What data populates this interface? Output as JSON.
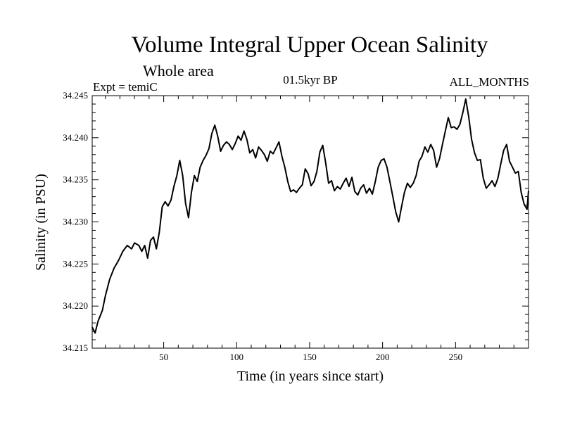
{
  "header": {
    "title": "Volume Integral Upper Ocean Salinity",
    "subtitle": "Whole area",
    "experiment": "Expt = temiC",
    "period": "01.5kyr BP",
    "months": "ALL_MONTHS"
  },
  "chart_data": {
    "type": "line",
    "title": "Volume Integral Upper Ocean Salinity",
    "xlabel": "Time (in years since start)",
    "ylabel": "Salinity (in PSU)",
    "xlim": [
      1,
      300
    ],
    "ylim": [
      34.215,
      34.245
    ],
    "x_ticks": [
      50,
      100,
      150,
      200,
      250
    ],
    "x_tick_labels": [
      "50",
      "100",
      "150",
      "200",
      "250"
    ],
    "y_ticks": [
      34.215,
      34.22,
      34.225,
      34.23,
      34.235,
      34.24,
      34.245
    ],
    "y_tick_labels": [
      "34.215",
      "34.220",
      "34.225",
      "34.230",
      "34.235",
      "34.240",
      "34.245"
    ],
    "grid": false,
    "series": [
      {
        "name": "Salinity",
        "points": [
          [
            1,
            34.2175
          ],
          [
            3,
            34.2168
          ],
          [
            5,
            34.2182
          ],
          [
            8,
            34.2195
          ],
          [
            10,
            34.2212
          ],
          [
            13,
            34.2232
          ],
          [
            16,
            34.2245
          ],
          [
            19,
            34.2254
          ],
          [
            22,
            34.2265
          ],
          [
            25,
            34.2272
          ],
          [
            28,
            34.2268
          ],
          [
            30,
            34.2275
          ],
          [
            33,
            34.2272
          ],
          [
            35,
            34.2265
          ],
          [
            37,
            34.2272
          ],
          [
            39,
            34.2257
          ],
          [
            41,
            34.2278
          ],
          [
            43,
            34.2282
          ],
          [
            45,
            34.2268
          ],
          [
            47,
            34.2288
          ],
          [
            49,
            34.2318
          ],
          [
            51,
            34.2324
          ],
          [
            53,
            34.2319
          ],
          [
            55,
            34.2326
          ],
          [
            57,
            34.2342
          ],
          [
            59,
            34.2355
          ],
          [
            61,
            34.2373
          ],
          [
            63,
            34.2355
          ],
          [
            65,
            34.2322
          ],
          [
            67,
            34.2305
          ],
          [
            69,
            34.2335
          ],
          [
            71,
            34.2355
          ],
          [
            73,
            34.2348
          ],
          [
            75,
            34.2365
          ],
          [
            77,
            34.2373
          ],
          [
            79,
            34.2379
          ],
          [
            81,
            34.2387
          ],
          [
            83,
            34.2405
          ],
          [
            85,
            34.2415
          ],
          [
            87,
            34.2402
          ],
          [
            89,
            34.2384
          ],
          [
            91,
            34.2391
          ],
          [
            93,
            34.2395
          ],
          [
            95,
            34.2392
          ],
          [
            97,
            34.2386
          ],
          [
            99,
            34.2393
          ],
          [
            101,
            34.2402
          ],
          [
            103,
            34.2397
          ],
          [
            105,
            34.2408
          ],
          [
            107,
            34.2398
          ],
          [
            109,
            34.2382
          ],
          [
            111,
            34.2386
          ],
          [
            113,
            34.2376
          ],
          [
            115,
            34.2389
          ],
          [
            117,
            34.2385
          ],
          [
            119,
            34.238
          ],
          [
            121,
            34.2372
          ],
          [
            123,
            34.2384
          ],
          [
            125,
            34.2381
          ],
          [
            127,
            34.2388
          ],
          [
            129,
            34.2395
          ],
          [
            131,
            34.2378
          ],
          [
            133,
            34.2365
          ],
          [
            135,
            34.2348
          ],
          [
            137,
            34.2336
          ],
          [
            139,
            34.2338
          ],
          [
            141,
            34.2335
          ],
          [
            143,
            34.234
          ],
          [
            145,
            34.2344
          ],
          [
            147,
            34.2363
          ],
          [
            149,
            34.2357
          ],
          [
            151,
            34.2343
          ],
          [
            153,
            34.2348
          ],
          [
            155,
            34.236
          ],
          [
            157,
            34.2383
          ],
          [
            159,
            34.2391
          ],
          [
            161,
            34.237
          ],
          [
            163,
            34.2346
          ],
          [
            165,
            34.2349
          ],
          [
            167,
            34.2337
          ],
          [
            169,
            34.2342
          ],
          [
            171,
            34.2339
          ],
          [
            173,
            34.2346
          ],
          [
            175,
            34.2352
          ],
          [
            177,
            34.2342
          ],
          [
            179,
            34.2353
          ],
          [
            181,
            34.2336
          ],
          [
            183,
            34.2332
          ],
          [
            185,
            34.234
          ],
          [
            187,
            34.2344
          ],
          [
            189,
            34.2334
          ],
          [
            191,
            34.234
          ],
          [
            193,
            34.2333
          ],
          [
            195,
            34.2348
          ],
          [
            197,
            34.2365
          ],
          [
            199,
            34.2373
          ],
          [
            201,
            34.2375
          ],
          [
            203,
            34.2365
          ],
          [
            205,
            34.2348
          ],
          [
            207,
            34.233
          ],
          [
            209,
            34.2312
          ],
          [
            211,
            34.23
          ],
          [
            213,
            34.2318
          ],
          [
            215,
            34.2335
          ],
          [
            217,
            34.2346
          ],
          [
            219,
            34.2341
          ],
          [
            221,
            34.2346
          ],
          [
            223,
            34.2355
          ],
          [
            225,
            34.2372
          ],
          [
            227,
            34.2378
          ],
          [
            229,
            34.2389
          ],
          [
            231,
            34.2383
          ],
          [
            233,
            34.2392
          ],
          [
            235,
            34.2385
          ],
          [
            237,
            34.2365
          ],
          [
            239,
            34.2375
          ],
          [
            241,
            34.2392
          ],
          [
            243,
            34.2408
          ],
          [
            245,
            34.2424
          ],
          [
            247,
            34.2412
          ],
          [
            249,
            34.2413
          ],
          [
            251,
            34.241
          ],
          [
            253,
            34.2416
          ],
          [
            255,
            34.243
          ],
          [
            257,
            34.2446
          ],
          [
            259,
            34.2425
          ],
          [
            261,
            34.2398
          ],
          [
            263,
            34.2382
          ],
          [
            265,
            34.2373
          ],
          [
            267,
            34.2374
          ],
          [
            269,
            34.2352
          ],
          [
            271,
            34.234
          ],
          [
            273,
            34.2344
          ],
          [
            275,
            34.2349
          ],
          [
            277,
            34.2342
          ],
          [
            279,
            34.2352
          ],
          [
            281,
            34.2369
          ],
          [
            283,
            34.2385
          ],
          [
            285,
            34.2392
          ],
          [
            287,
            34.2372
          ],
          [
            289,
            34.2365
          ],
          [
            291,
            34.2358
          ],
          [
            293,
            34.236
          ],
          [
            295,
            34.2335
          ],
          [
            297,
            34.2321
          ],
          [
            299,
            34.2315
          ],
          [
            300,
            34.2337
          ]
        ]
      }
    ]
  }
}
